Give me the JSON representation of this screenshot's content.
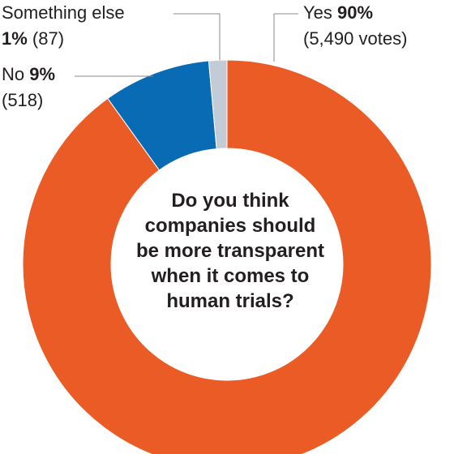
{
  "chart_data": {
    "type": "pie",
    "donut": true,
    "title": "Do you think companies should be more transparent when it comes to human trials?",
    "title_lines": [
      "Do you think",
      "companies should",
      "be more transparent",
      "when it comes to",
      "human trials?"
    ],
    "slices": [
      {
        "name": "Yes",
        "percent_label": "90%",
        "votes_label": "(5,490 votes)",
        "votes": 5490,
        "color": "#ea5b25"
      },
      {
        "name": "No",
        "percent_label": "9%",
        "votes_label": "(518)",
        "votes": 518,
        "color": "#0a6bb5"
      },
      {
        "name": "Something else",
        "percent_label": "1%",
        "votes_label": "(87)",
        "votes": 87,
        "color": "#c3ccd6"
      }
    ],
    "legend": "none"
  },
  "colors": {
    "leader_line": "#8a8a8a",
    "separator": "#ffffff",
    "text": "#231f20"
  }
}
